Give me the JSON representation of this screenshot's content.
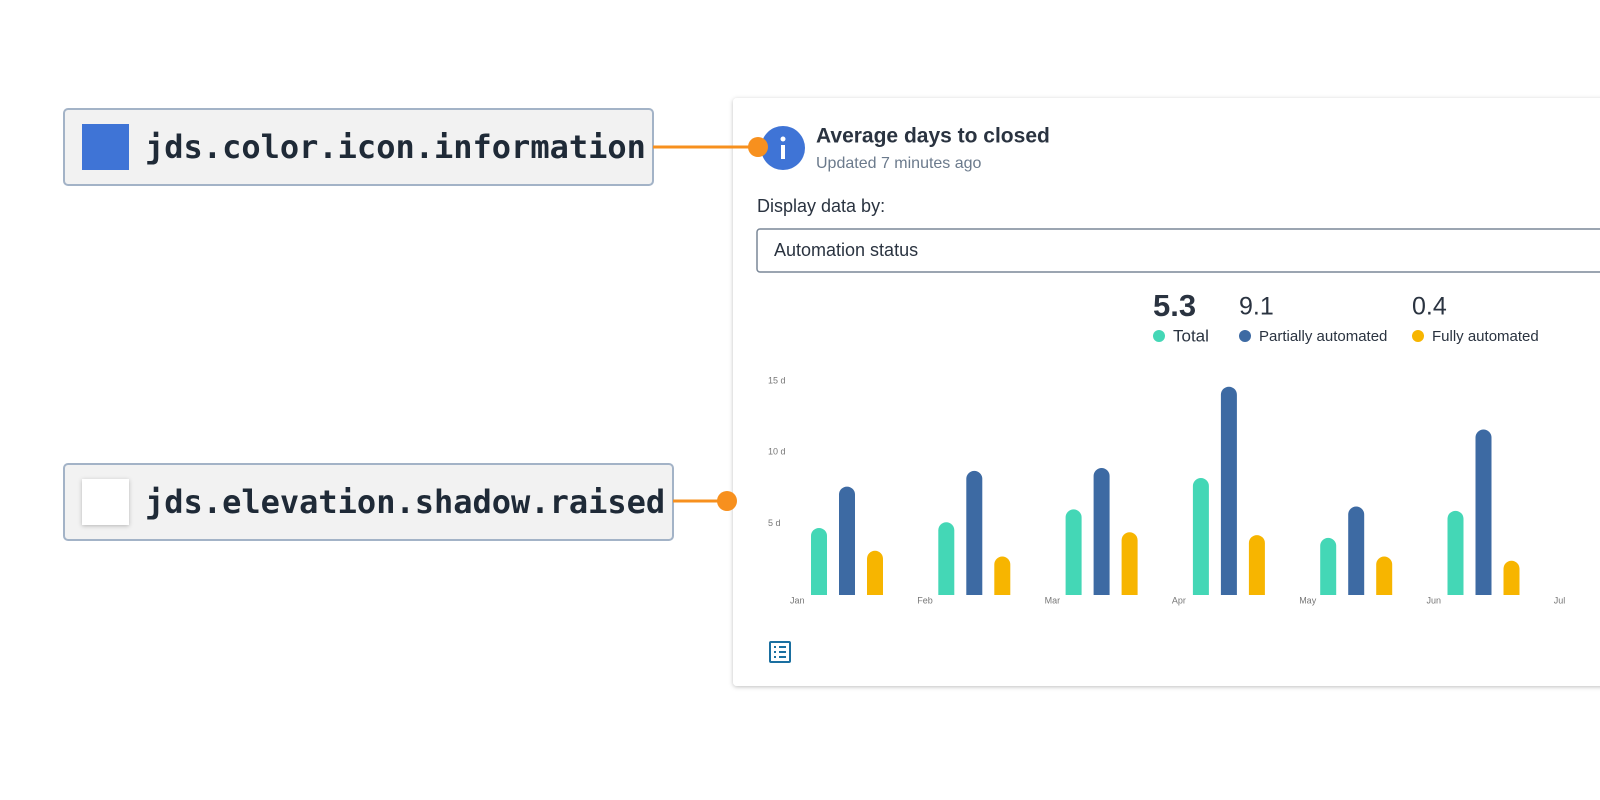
{
  "annotations": [
    {
      "label": "jds.color.icon.information",
      "swatch": "#3f74d6"
    },
    {
      "label": "jds.elevation.shadow.raised",
      "swatch": "#ffffff"
    }
  ],
  "card": {
    "title": "Average days to closed",
    "subtitle": "Updated 7 minutes ago",
    "filter_label": "Display data by:",
    "filter_value": "Automation status"
  },
  "chart_data": {
    "type": "bar",
    "summary": [
      5.3,
      9.1,
      0.4
    ],
    "categories": [
      "Jan",
      "Feb",
      "Mar",
      "Apr",
      "May",
      "Jun",
      "Jul"
    ],
    "series": [
      {
        "name": "Total",
        "color": "#44d7b6",
        "values": [
          4.7,
          5.1,
          6.0,
          8.2,
          4.0,
          5.9,
          null
        ]
      },
      {
        "name": "Partially automated",
        "color": "#3d6aa3",
        "values": [
          7.6,
          8.7,
          8.9,
          14.6,
          6.2,
          11.6,
          null
        ]
      },
      {
        "name": "Fully automated",
        "color": "#f7b500",
        "values": [
          3.1,
          2.7,
          4.4,
          4.2,
          2.7,
          2.4,
          null
        ]
      }
    ],
    "ylim": [
      0,
      15
    ],
    "yticks": [
      {
        "value": 5,
        "label": "5 d"
      },
      {
        "value": 10,
        "label": "10 d"
      },
      {
        "value": 15,
        "label": "15 d"
      }
    ]
  }
}
